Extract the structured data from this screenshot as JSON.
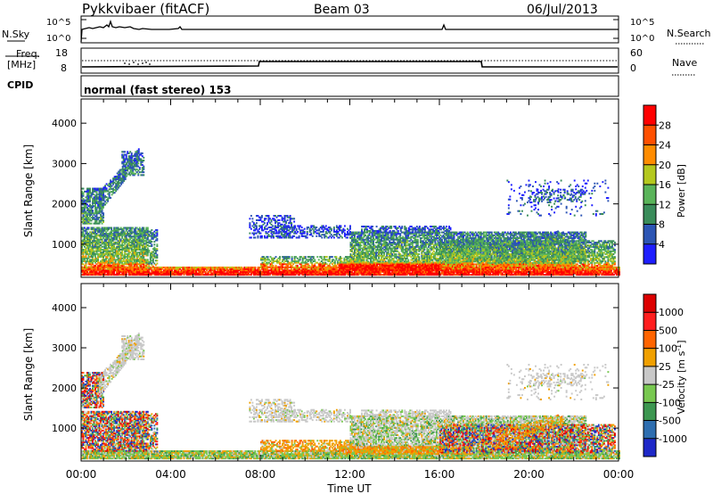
{
  "header": {
    "station": "Pykkvibaer (fitACF)",
    "beam": "Beam 03",
    "date": "06/Jul/2013"
  },
  "top_panels": {
    "nsky_label": "N.Sky",
    "nsearch_label": "N.Search",
    "freq_label_top": "Freq.",
    "freq_label_unit": "[MHz]",
    "nave_label": "Nave",
    "cpid_label": "CPID",
    "cpid_text": "normal (fast stereo) 153",
    "noise_ticks_left": [
      "10^5",
      "10^0"
    ],
    "noise_ticks_right": [
      "10^5",
      "10^0"
    ],
    "freq_ticks_left": [
      "18",
      "8"
    ],
    "nave_ticks_right": [
      "60",
      "0"
    ]
  },
  "chart_data": [
    {
      "type": "heatmap",
      "ylabel": "Slant Range [km]",
      "xlabel": "Time UT",
      "ylim": [
        180,
        4600
      ],
      "xlim": [
        0,
        24
      ],
      "yticks": [
        1000,
        2000,
        3000,
        4000
      ],
      "xtick_labels": [
        "00:00",
        "04:00",
        "08:00",
        "12:00",
        "16:00",
        "20:00",
        "00:00"
      ],
      "colorbar": {
        "label": "Power [dB]",
        "ticks": [
          "4",
          "8",
          "12",
          "16",
          "20",
          "24",
          "28"
        ],
        "colors": [
          "#1e1eff",
          "#2c55b4",
          "#3a8c5a",
          "#5ab45a",
          "#b4c81e",
          "#ff8c00",
          "#ff5000",
          "#ff0000"
        ]
      }
    },
    {
      "type": "heatmap",
      "ylabel": "Slant Range [km]",
      "xlabel": "Time UT",
      "ylim": [
        180,
        4600
      ],
      "xlim": [
        0,
        24
      ],
      "yticks": [
        1000,
        2000,
        3000,
        4000
      ],
      "xtick_labels": [
        "00:00",
        "04:00",
        "08:00",
        "12:00",
        "16:00",
        "20:00",
        "00:00"
      ],
      "colorbar": {
        "label": "Velocity [m s",
        "label_sup": "-1",
        "label_close": "]",
        "ticks": [
          "1000",
          "500",
          "100",
          "25",
          "-25",
          "-100",
          "-500",
          "-1000"
        ],
        "colors": [
          "#1e28c8",
          "#2e6eb0",
          "#3c9650",
          "#78c850",
          "#c8c8c8",
          "#f0a000",
          "#ff6400",
          "#ff1e1e",
          "#dc0000"
        ]
      }
    }
  ],
  "time_axis": {
    "labels": [
      "00:00",
      "04:00",
      "08:00",
      "12:00",
      "16:00",
      "20:00",
      "00:00"
    ],
    "title": "Time UT"
  }
}
